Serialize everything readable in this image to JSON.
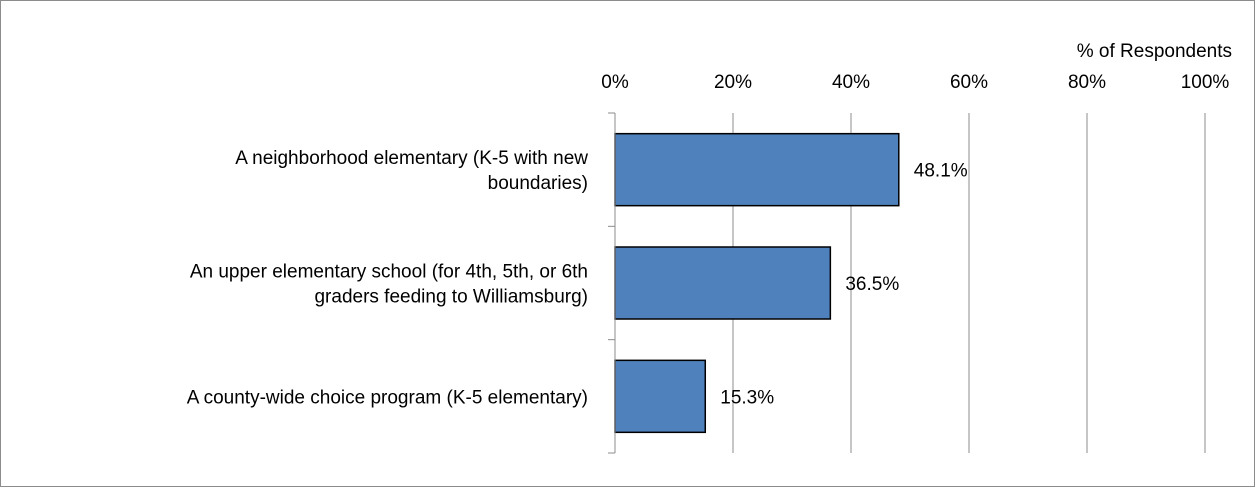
{
  "chart_data": {
    "type": "bar",
    "orientation": "horizontal",
    "categories": [
      "A neighborhood elementary (K-5 with new boundaries)",
      "An upper elementary school (for 4th, 5th, or 6th graders feeding to Williamsburg)",
      "A county-wide choice program (K-5 elementary)"
    ],
    "category_lines": [
      [
        "A neighborhood elementary (K-5 with new",
        "boundaries)"
      ],
      [
        "An upper elementary school (for 4th, 5th, or 6th",
        "graders feeding to Williamsburg)"
      ],
      [
        "A county-wide choice program (K-5 elementary)"
      ]
    ],
    "values": [
      48.1,
      36.5,
      15.3
    ],
    "data_labels": [
      "48.1%",
      "36.5%",
      "15.3%"
    ],
    "xlabel": "% of Respondents",
    "ylabel": "",
    "xlim": [
      0,
      100
    ],
    "x_ticks": [
      0,
      20,
      40,
      60,
      80,
      100
    ],
    "x_tick_labels": [
      "0%",
      "20%",
      "40%",
      "60%",
      "80%",
      "100%"
    ],
    "x_axis_position": "top",
    "grid": true,
    "legend": "none",
    "bar_color": "#4f81bd",
    "bar_edge_color": "#000000",
    "grid_color": "#8c8c8c"
  }
}
